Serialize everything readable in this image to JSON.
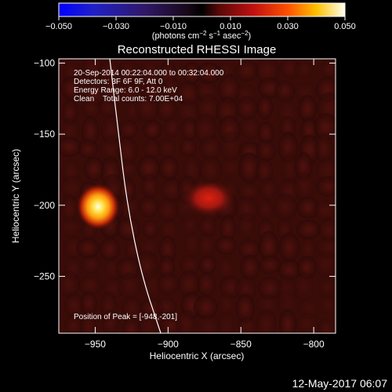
{
  "colorbar": {
    "ticks": [
      "−0.050",
      "−0.030",
      "−0.010",
      "0.010",
      "0.030",
      "0.050"
    ],
    "values": [
      -0.05,
      -0.03,
      -0.01,
      0.01,
      0.03,
      0.05
    ],
    "label_main": "(photons cm",
    "label_exp1": "−2",
    "label_s": " s",
    "label_exp2": "−1",
    "label_asec": " asec",
    "label_exp3": "−2",
    "label_close": ")"
  },
  "chart_data": {
    "type": "heatmap",
    "title": "Reconstructed RHESSI Image",
    "xlabel": "Heliocentric X (arcsec)",
    "ylabel": "Heliocentric Y (arcsec)",
    "xlim": [
      -975,
      -785
    ],
    "ylim": [
      -290,
      -97
    ],
    "xticks": [
      -950,
      -900,
      -850,
      -800
    ],
    "xtick_labels": [
      "−950",
      "−900",
      "−850",
      "−800"
    ],
    "yticks": [
      -100,
      -150,
      -200,
      -250
    ],
    "ytick_labels": [
      "−100",
      "−150",
      "−200",
      "−250"
    ],
    "annotations": [
      "20-Sep-2014 00:22:04.000 to 00:32:04.000",
      "Detectors: 3F 6F 9F, Att 0",
      "Energy Range: 6.0 - 12.0 keV",
      "Clean    Total counts: 7.00E+04"
    ],
    "peak_label": "Position of Peak = [-948,-201]",
    "sources": [
      {
        "x": -948,
        "y": -201,
        "intensity": 0.05
      },
      {
        "x": -872,
        "y": -195,
        "intensity": 0.02
      }
    ],
    "limb_curve": [
      [
        -940,
        -97
      ],
      [
        -934,
        -150
      ],
      [
        -928,
        -200
      ],
      [
        -918,
        -250
      ],
      [
        -905,
        -290
      ]
    ]
  },
  "footer": {
    "datestamp": "12-May-2017 06:07"
  }
}
